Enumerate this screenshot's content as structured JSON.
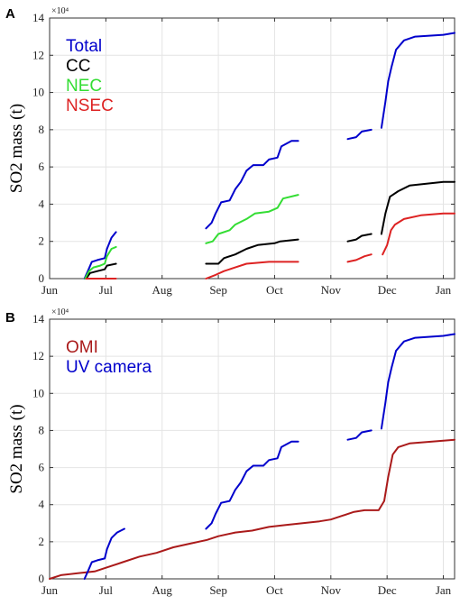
{
  "chart_data": [
    {
      "panel_label": "A",
      "type": "line",
      "ylabel": "SO2 mass (t)",
      "yscale_label": "×10⁴",
      "xlim": [
        0,
        7.2
      ],
      "ylim": [
        0,
        14
      ],
      "xticks": [
        0,
        1,
        2,
        3,
        4,
        5,
        6,
        7
      ],
      "xtick_labels": [
        "Jun",
        "Jul",
        "Aug",
        "Sep",
        "Oct",
        "Nov",
        "Dec",
        "Jan"
      ],
      "yticks": [
        0,
        2,
        4,
        6,
        8,
        10,
        12,
        14
      ],
      "ytick_labels": [
        "0",
        "2",
        "4",
        "6",
        "8",
        "10",
        "12",
        "14"
      ],
      "grid": true,
      "legend_position": "top-left",
      "series": [
        {
          "name": "Total",
          "color": "#0000cc",
          "segments": [
            [
              [
                0.62,
                0.0
              ],
              [
                0.68,
                0.4
              ],
              [
                0.75,
                0.9
              ],
              [
                0.85,
                1.0
              ],
              [
                0.98,
                1.1
              ],
              [
                1.02,
                1.6
              ],
              [
                1.1,
                2.2
              ],
              [
                1.18,
                2.5
              ]
            ],
            [
              [
                2.78,
                2.7
              ],
              [
                2.88,
                3.0
              ],
              [
                2.95,
                3.5
              ],
              [
                3.05,
                4.1
              ],
              [
                3.2,
                4.2
              ],
              [
                3.3,
                4.8
              ],
              [
                3.4,
                5.2
              ],
              [
                3.5,
                5.8
              ],
              [
                3.62,
                6.1
              ],
              [
                3.8,
                6.1
              ],
              [
                3.9,
                6.4
              ],
              [
                4.05,
                6.5
              ],
              [
                4.12,
                7.1
              ],
              [
                4.3,
                7.4
              ],
              [
                4.42,
                7.4
              ]
            ],
            [
              [
                5.3,
                7.5
              ],
              [
                5.45,
                7.6
              ],
              [
                5.55,
                7.9
              ],
              [
                5.72,
                8.0
              ]
            ],
            [
              [
                5.9,
                8.1
              ],
              [
                5.97,
                9.5
              ],
              [
                6.02,
                10.6
              ],
              [
                6.08,
                11.4
              ],
              [
                6.16,
                12.3
              ],
              [
                6.3,
                12.8
              ],
              [
                6.5,
                13.0
              ],
              [
                7.0,
                13.1
              ],
              [
                7.2,
                13.2
              ]
            ]
          ]
        },
        {
          "name": "CC",
          "color": "#000000",
          "segments": [
            [
              [
                0.65,
                0.0
              ],
              [
                0.72,
                0.3
              ],
              [
                0.85,
                0.4
              ],
              [
                0.98,
                0.5
              ],
              [
                1.02,
                0.7
              ],
              [
                1.18,
                0.8
              ]
            ],
            [
              [
                2.78,
                0.8
              ],
              [
                3.0,
                0.8
              ],
              [
                3.1,
                1.1
              ],
              [
                3.3,
                1.3
              ],
              [
                3.5,
                1.6
              ],
              [
                3.7,
                1.8
              ],
              [
                4.0,
                1.9
              ],
              [
                4.1,
                2.0
              ],
              [
                4.42,
                2.1
              ]
            ],
            [
              [
                5.3,
                2.0
              ],
              [
                5.45,
                2.1
              ],
              [
                5.55,
                2.3
              ],
              [
                5.72,
                2.4
              ]
            ],
            [
              [
                5.9,
                2.4
              ],
              [
                5.97,
                3.5
              ],
              [
                6.05,
                4.4
              ],
              [
                6.2,
                4.7
              ],
              [
                6.4,
                5.0
              ],
              [
                6.7,
                5.1
              ],
              [
                7.0,
                5.2
              ],
              [
                7.2,
                5.2
              ]
            ]
          ]
        },
        {
          "name": "NEC",
          "color": "#33dd33",
          "segments": [
            [
              [
                0.63,
                0.0
              ],
              [
                0.7,
                0.4
              ],
              [
                0.78,
                0.6
              ],
              [
                0.9,
                0.7
              ],
              [
                0.98,
                0.8
              ],
              [
                1.02,
                1.2
              ],
              [
                1.1,
                1.6
              ],
              [
                1.18,
                1.7
              ]
            ],
            [
              [
                2.78,
                1.9
              ],
              [
                2.9,
                2.0
              ],
              [
                3.0,
                2.4
              ],
              [
                3.2,
                2.6
              ],
              [
                3.3,
                2.9
              ],
              [
                3.5,
                3.2
              ],
              [
                3.65,
                3.5
              ],
              [
                3.9,
                3.6
              ],
              [
                4.05,
                3.8
              ],
              [
                4.15,
                4.3
              ],
              [
                4.42,
                4.5
              ]
            ]
          ]
        },
        {
          "name": "NSEC",
          "color": "#dd2222",
          "segments": [
            [
              [
                0.65,
                0.0
              ],
              [
                1.18,
                0.0
              ]
            ],
            [
              [
                2.78,
                0.0
              ],
              [
                2.95,
                0.2
              ],
              [
                3.1,
                0.4
              ],
              [
                3.3,
                0.6
              ],
              [
                3.5,
                0.8
              ],
              [
                3.9,
                0.9
              ],
              [
                4.42,
                0.9
              ]
            ],
            [
              [
                5.3,
                0.9
              ],
              [
                5.45,
                1.0
              ],
              [
                5.6,
                1.2
              ],
              [
                5.72,
                1.3
              ]
            ],
            [
              [
                5.92,
                1.3
              ],
              [
                6.0,
                1.8
              ],
              [
                6.07,
                2.6
              ],
              [
                6.14,
                2.9
              ],
              [
                6.3,
                3.2
              ],
              [
                6.6,
                3.4
              ],
              [
                7.0,
                3.5
              ],
              [
                7.2,
                3.5
              ]
            ]
          ]
        }
      ]
    },
    {
      "panel_label": "B",
      "type": "line",
      "ylabel": "SO2 mass (t)",
      "yscale_label": "×10⁴",
      "xlim": [
        0,
        7.2
      ],
      "ylim": [
        0,
        14
      ],
      "xticks": [
        0,
        1,
        2,
        3,
        4,
        5,
        6,
        7
      ],
      "xtick_labels": [
        "Jun",
        "Jul",
        "Aug",
        "Sep",
        "Oct",
        "Nov",
        "Dec",
        "Jan"
      ],
      "yticks": [
        0,
        2,
        4,
        6,
        8,
        10,
        12,
        14
      ],
      "ytick_labels": [
        "0",
        "2",
        "4",
        "6",
        "8",
        "10",
        "12",
        "14"
      ],
      "grid": true,
      "legend_position": "top-left",
      "series": [
        {
          "name": "OMI",
          "color": "#aa1a1a",
          "segments": [
            [
              [
                0.0,
                0.0
              ],
              [
                0.2,
                0.2
              ],
              [
                0.5,
                0.3
              ],
              [
                0.8,
                0.4
              ],
              [
                1.0,
                0.6
              ],
              [
                1.3,
                0.9
              ],
              [
                1.6,
                1.2
              ],
              [
                1.9,
                1.4
              ],
              [
                2.2,
                1.7
              ],
              [
                2.5,
                1.9
              ],
              [
                2.8,
                2.1
              ],
              [
                3.0,
                2.3
              ],
              [
                3.3,
                2.5
              ],
              [
                3.6,
                2.6
              ],
              [
                3.9,
                2.8
              ],
              [
                4.2,
                2.9
              ],
              [
                4.5,
                3.0
              ],
              [
                4.8,
                3.1
              ],
              [
                5.0,
                3.2
              ],
              [
                5.2,
                3.4
              ],
              [
                5.4,
                3.6
              ],
              [
                5.6,
                3.7
              ],
              [
                5.85,
                3.7
              ],
              [
                5.95,
                4.2
              ],
              [
                6.02,
                5.5
              ],
              [
                6.1,
                6.7
              ],
              [
                6.2,
                7.1
              ],
              [
                6.4,
                7.3
              ],
              [
                6.8,
                7.4
              ],
              [
                7.2,
                7.5
              ]
            ]
          ]
        },
        {
          "name": "UV camera",
          "color": "#0000cc",
          "segments": [
            [
              [
                0.62,
                0.0
              ],
              [
                0.68,
                0.4
              ],
              [
                0.75,
                0.9
              ],
              [
                0.85,
                1.0
              ],
              [
                0.98,
                1.1
              ],
              [
                1.02,
                1.6
              ],
              [
                1.1,
                2.2
              ],
              [
                1.2,
                2.5
              ],
              [
                1.33,
                2.7
              ]
            ],
            [
              [
                2.78,
                2.7
              ],
              [
                2.88,
                3.0
              ],
              [
                2.95,
                3.5
              ],
              [
                3.05,
                4.1
              ],
              [
                3.2,
                4.2
              ],
              [
                3.3,
                4.8
              ],
              [
                3.4,
                5.2
              ],
              [
                3.5,
                5.8
              ],
              [
                3.62,
                6.1
              ],
              [
                3.8,
                6.1
              ],
              [
                3.9,
                6.4
              ],
              [
                4.05,
                6.5
              ],
              [
                4.12,
                7.1
              ],
              [
                4.3,
                7.4
              ],
              [
                4.42,
                7.4
              ]
            ],
            [
              [
                5.3,
                7.5
              ],
              [
                5.45,
                7.6
              ],
              [
                5.55,
                7.9
              ],
              [
                5.72,
                8.0
              ]
            ],
            [
              [
                5.9,
                8.1
              ],
              [
                5.97,
                9.5
              ],
              [
                6.02,
                10.6
              ],
              [
                6.08,
                11.4
              ],
              [
                6.16,
                12.3
              ],
              [
                6.3,
                12.8
              ],
              [
                6.5,
                13.0
              ],
              [
                7.0,
                13.1
              ],
              [
                7.2,
                13.2
              ]
            ]
          ]
        }
      ]
    }
  ]
}
